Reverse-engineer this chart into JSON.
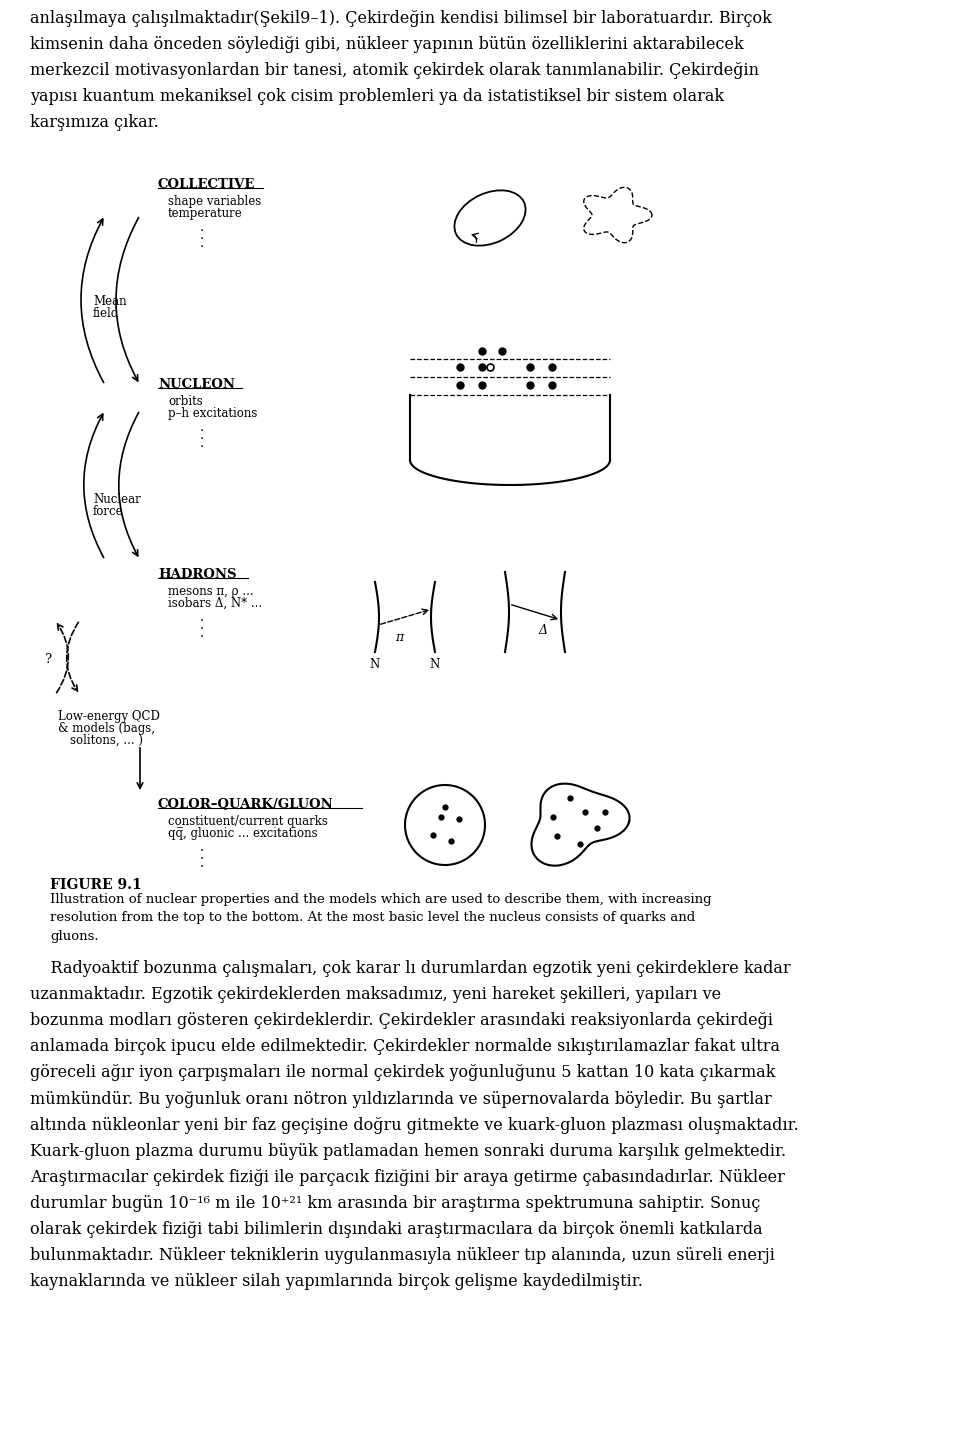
{
  "bg_color": "#ffffff",
  "top_para": "anlaşılmaya çalışılmaktadır(Şekil9–1). Çekirdeğin kendisi bilimsel bir laboratuardır. Birçok\nkimsenin daha önceden söylediği gibi, nükleer yapının bütün özelliklerini aktarabilecek\nmerkezcil motivasyonlardan bir tanesi, atomik çekirdek olarak tanımlanabilir. Çekirdeğin\nyapısı kuantum mekaniksel çok cisim problemleri ya da istatistiksel bir sistem olarak\nkarşımıza çıkar.",
  "figure_caption_bold": "FIGURE 9.1",
  "figure_caption": "Illustration of nuclear properties and the models which are used to describe them, with increasing\nresolution from the top to the bottom. At the most basic level the nucleus consists of quarks and\ngluons.",
  "bottom_para": "    Radyoaktif bozunma çalışmaları, çok karar lı durumlardan egzotik yeni çekirdeklere kadar\nuzanmaktadır. Egzotik çekirdeklerden maksadımız, yeni hareket şekilleri, yapıları ve\nbozunma modları gösteren çekirdeklerdir. Çekirdekler arasındaki reaksiyonlarda çekirdeği\nanlamada birçok ipucu elde edilmektedir. Çekirdekler normalde sıkıştırılamazlar fakat ultra\ngöreceli ağır iyon çarpışmaları ile normal çekirdek yoğunluğunu 5 kattan 10 kata çıkarmak\nmümkündür. Bu yoğunluk oranı nötron yıldızlarında ve süpernovalarda böyledir. Bu şartlar\naltında nükleonlar yeni bir faz geçişine doğru gitmekte ve kuark-gluon plazması oluşmaktadır.\nKuark-gluon plazma durumu büyük patlamadan hemen sonraki duruma karşılık gelmektedir.\nAraştırmacılar çekirdek fiziği ile parçacık fiziğini bir araya getirme çabasındadırlar. Nükleer\ndurumlar bugün 10⁻¹⁶ m ile 10⁺²¹ km arasında bir araştırma spektrumuna sahiptir. Sonuç\nolarak çekirdek fiziği tabi bilimlerin dışındaki araştırmacılara da birçok önemli katkılarda\nbulunmaktadır. Nükleer tekniklerin uygulanmasıyla nükleer tıp alanında, uzun süreli enerji\nkaynaklarında ve nükleer silah yapımlarında birçok gelişme kaydedilmiştir."
}
